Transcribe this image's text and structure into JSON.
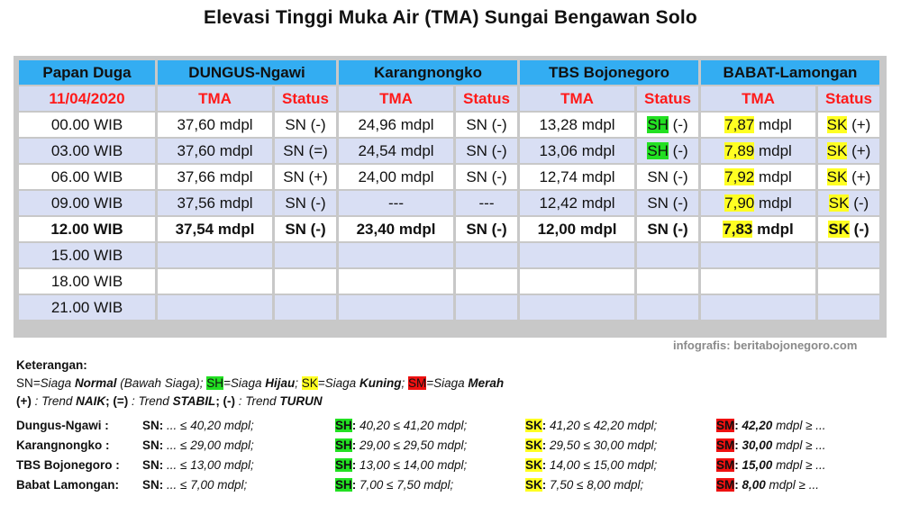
{
  "title": "Elevasi Tinggi Muka Air (TMA) Sungai Bengawan Solo",
  "table": {
    "header": [
      "Papan Duga",
      "DUNGUS-Ngawi",
      "Karangnongko",
      "TBS Bojonegoro",
      "BABAT-Lamongan"
    ],
    "date": "11/04/2020",
    "sub_tma": "TMA",
    "sub_status": "Status",
    "rows": [
      {
        "time": "00.00 WIB",
        "c": [
          [
            "37,60 mdpl",
            "",
            "SN (-)",
            ""
          ],
          [
            "24,96 mdpl",
            "",
            "SN (-)",
            ""
          ],
          [
            "13,28 mdpl",
            "",
            "SH",
            " (-)"
          ],
          [
            "7,87",
            " mdpl",
            "SK",
            " (+)"
          ]
        ]
      },
      {
        "time": "03.00 WIB",
        "c": [
          [
            "37,60 mdpl",
            "",
            "SN (=)",
            ""
          ],
          [
            "24,54 mdpl",
            "",
            "SN (-)",
            ""
          ],
          [
            "13,06 mdpl",
            "",
            "SH",
            " (-)"
          ],
          [
            "7,89",
            " mdpl",
            "SK",
            " (+)"
          ]
        ]
      },
      {
        "time": "06.00 WIB",
        "c": [
          [
            "37,66 mdpl",
            "",
            "SN (+)",
            ""
          ],
          [
            "24,00 mdpl",
            "",
            "SN (-)",
            ""
          ],
          [
            "12,74 mdpl",
            "",
            "SN (-)",
            ""
          ],
          [
            "7,92",
            " mdpl",
            "SK",
            " (+)"
          ]
        ]
      },
      {
        "time": "09.00 WIB",
        "c": [
          [
            "37,56 mdpl",
            "",
            "SN (-)",
            ""
          ],
          [
            "---",
            "",
            "---",
            ""
          ],
          [
            "12,42 mdpl",
            "",
            "SN (-)",
            ""
          ],
          [
            "7,90",
            " mdpl",
            "SK",
            " (-)"
          ]
        ]
      },
      {
        "time": "12.00 WIB",
        "c": [
          [
            "37,54 mdpl",
            "",
            "SN (-)",
            ""
          ],
          [
            "23,40 mdpl",
            "",
            "SN (-)",
            ""
          ],
          [
            "12,00 mdpl",
            "",
            "SN (-)",
            ""
          ],
          [
            "7,83",
            " mdpl",
            "SK",
            " (-)"
          ]
        ]
      },
      {
        "time": "15.00 WIB"
      },
      {
        "time": "18.00 WIB"
      },
      {
        "time": "21.00 WIB"
      }
    ]
  },
  "credit": "infografis: beritabojonegoro.com",
  "legend": {
    "heading": "Keterangan:",
    "l1": {
      "sn": "SN",
      "sn_txt": "=Siaga ",
      "sn_b": "Normal",
      "sn_rest": " (Bawah Siaga);",
      "sh": "SH",
      "sh_txt": "=Siaga ",
      "sh_b": "Hijau",
      "sep1": ";",
      "sk": "SK",
      "sk_txt": "=Siaga ",
      "sk_b": "Kuning",
      "sep2": ";",
      "sm": "SM",
      "sm_txt": "=Siaga ",
      "sm_b": "Merah"
    },
    "l2": {
      "p1": "(+)",
      "t1": " : Trend ",
      "b1": "NAIK",
      "p2": "; (=)",
      "t2": " : Trend ",
      "b2": "STABIL",
      "p3": "; (-)",
      "t3": " : Trend ",
      "b3": "TURUN"
    }
  },
  "thresholds": [
    {
      "name": "Dungus-Ngawi :",
      "sn": "... ≤ 40,20 mdpl;",
      "sh": "40,20 ≤ 41,20 mdpl;",
      "sk": "41,20 ≤ 42,20 mdpl;",
      "sm_b": "42,20",
      "sm": " mdpl ≥ ..."
    },
    {
      "name": "Karangnongko :",
      "sn": "... ≤ 29,00 mdpl;",
      "sh": "29,00 ≤ 29,50 mdpl;",
      "sk": "29,50 ≤ 30,00 mdpl;",
      "sm_b": "30,00",
      "sm": " mdpl ≥ ..."
    },
    {
      "name": "TBS Bojonegoro :",
      "sn": "... ≤ 13,00 mdpl;",
      "sh": "13,00 ≤ 14,00 mdpl;",
      "sk": "14,00 ≤ 15,00 mdpl;",
      "sm_b": "15,00",
      "sm": " mdpl ≥ ..."
    },
    {
      "name": "Babat Lamongan:",
      "sn": "... ≤ 7,00 mdpl;",
      "sh": "7,00 ≤ 7,50 mdpl;",
      "sk": "7,50 ≤ 8,00 mdpl;",
      "sm_b": "8,00",
      "sm": " mdpl ≥ ..."
    }
  ],
  "labels": {
    "sn": "SN",
    "sh": "SH",
    "sk": "SK",
    "sm": "SM",
    "colon": ":"
  },
  "colors": {
    "header": "#33adf2",
    "sub": "#d5dcf2",
    "row_alt": "#d9dff4",
    "panel": "#c8c8c8",
    "green": "#22e022",
    "yellow": "#ffff22",
    "red": "#ee1111",
    "date_red": "#ff1a1a"
  }
}
